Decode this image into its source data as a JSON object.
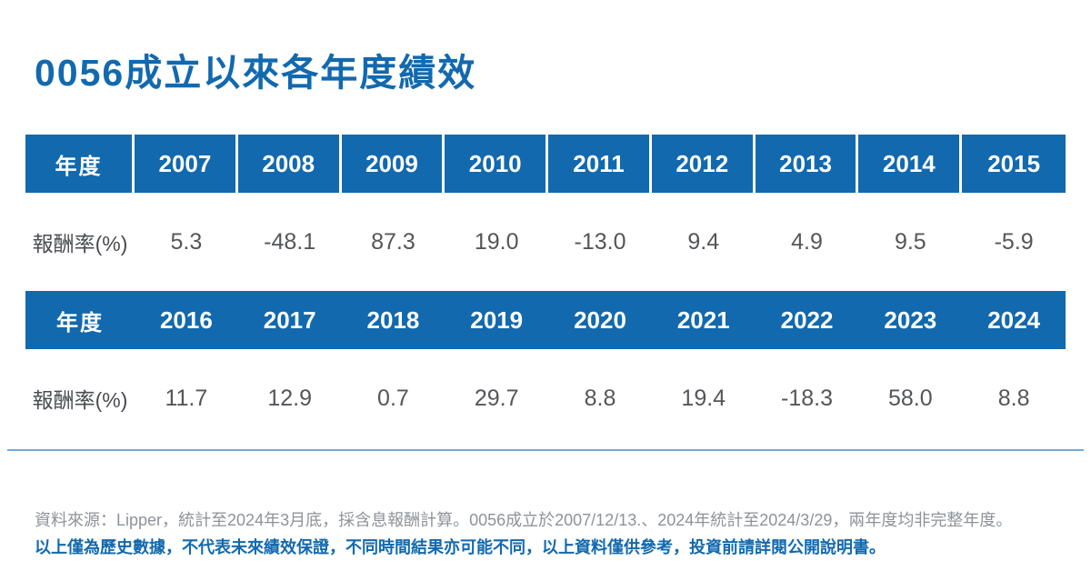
{
  "title": "0056成立以來各年度績效",
  "colors": {
    "primary_blue": "#1269ae",
    "value_text": "#54565a",
    "footnote_gray": "#8d9398",
    "divider_blue": "#74a9d4",
    "header_text": "#ffffff"
  },
  "table": {
    "header_label": "年度",
    "value_label": "報酬率(%)",
    "sections": [
      {
        "years": [
          "2007",
          "2008",
          "2009",
          "2010",
          "2011",
          "2012",
          "2013",
          "2014",
          "2015"
        ],
        "returns": [
          "5.3",
          "-48.1",
          "87.3",
          "19.0",
          "-13.0",
          "9.4",
          "4.9",
          "9.5",
          "-5.9"
        ]
      },
      {
        "years": [
          "2016",
          "2017",
          "2018",
          "2019",
          "2020",
          "2021",
          "2022",
          "2023",
          "2024"
        ],
        "returns": [
          "11.7",
          "12.9",
          "0.7",
          "29.7",
          "8.8",
          "19.4",
          "-18.3",
          "58.0",
          "8.8"
        ]
      }
    ]
  },
  "chart_data": {
    "type": "table",
    "title": "0056成立以來各年度績效",
    "row_header": "年度",
    "row_label": "報酬率(%)",
    "categories": [
      2007,
      2008,
      2009,
      2010,
      2011,
      2012,
      2013,
      2014,
      2015,
      2016,
      2017,
      2018,
      2019,
      2020,
      2021,
      2022,
      2023,
      2024
    ],
    "values": [
      5.3,
      -48.1,
      87.3,
      19.0,
      -13.0,
      9.4,
      4.9,
      9.5,
      -5.9,
      11.7,
      12.9,
      0.7,
      29.7,
      8.8,
      19.4,
      -18.3,
      58.0,
      8.8
    ]
  },
  "footnotes": {
    "source": "資料來源：Lipper，統計至2024年3月底，採含息報酬計算。0056成立於2007/12/13.、2024年統計至2024/3/29，兩年度均非完整年度。",
    "disclaimer": "以上僅為歷史數據，不代表未來績效保證，不同時間結果亦可能不同，以上資料僅供參考，投資前請詳閱公開說明書。"
  }
}
